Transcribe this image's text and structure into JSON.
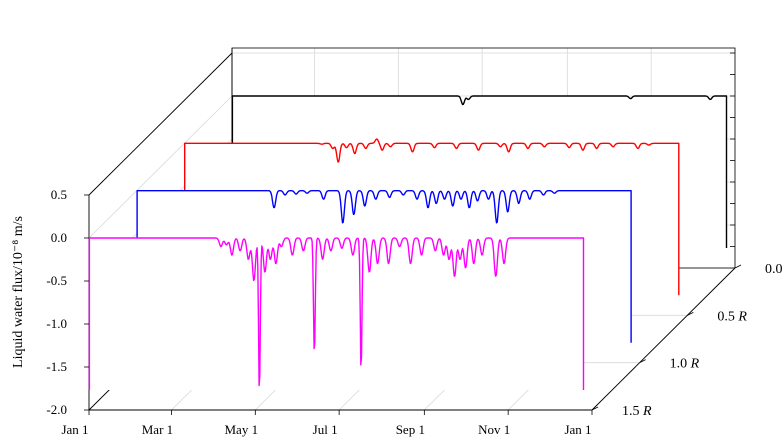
{
  "chart_data": {
    "type": "line",
    "style": "3d-waterfall",
    "ylabel": "Liquid water flux/10⁻⁸ m/s",
    "ylim": [
      -2.0,
      0.5
    ],
    "y_ticks": [
      "0.5",
      "0.0",
      "-0.5",
      "-1.0",
      "-1.5",
      "-2.0"
    ],
    "x_ticks": [
      "Jan 1",
      "Mar 1",
      "May 1",
      "Jul 1",
      "Sep 1",
      "Nov 1",
      "Jan 1"
    ],
    "x_tick_days": [
      0,
      60,
      121,
      182,
      244,
      305,
      366
    ],
    "depth_ticks": [
      "0.0",
      "0.5",
      "1.0",
      "1.5"
    ],
    "depth_unit": "R",
    "grid": true,
    "series": [
      {
        "depth": "0.0",
        "color": "#000000",
        "baseline": 0.0,
        "spikes": [
          [
            168,
            -0.1
          ],
          [
            172,
            -0.04
          ],
          [
            290,
            -0.03
          ],
          [
            348,
            -0.04
          ]
        ]
      },
      {
        "depth": "0.5",
        "color": "#ff0000",
        "baseline": 0.0,
        "spikes": [
          [
            100,
            -0.01
          ],
          [
            108,
            -0.06
          ],
          [
            112,
            -0.22
          ],
          [
            118,
            -0.05
          ],
          [
            124,
            -0.12
          ],
          [
            132,
            -0.06
          ],
          [
            140,
            0.05
          ],
          [
            144,
            -0.08
          ],
          [
            150,
            -0.04
          ],
          [
            166,
            -0.1
          ],
          [
            182,
            -0.05
          ],
          [
            198,
            -0.06
          ],
          [
            214,
            -0.08
          ],
          [
            230,
            -0.04
          ],
          [
            236,
            -0.1
          ],
          [
            250,
            -0.06
          ],
          [
            262,
            -0.04
          ],
          [
            280,
            -0.05
          ],
          [
            290,
            -0.08
          ],
          [
            300,
            -0.06
          ],
          [
            312,
            -0.04
          ],
          [
            330,
            -0.06
          ],
          [
            338,
            -0.02
          ]
        ]
      },
      {
        "depth": "1.0",
        "color": "#0000ff",
        "baseline": 0.0,
        "spikes": [
          [
            100,
            -0.2
          ],
          [
            108,
            -0.05
          ],
          [
            116,
            -0.04
          ],
          [
            124,
            -0.03
          ],
          [
            136,
            -0.1
          ],
          [
            150,
            -0.38
          ],
          [
            158,
            -0.28
          ],
          [
            166,
            -0.18
          ],
          [
            174,
            -0.1
          ],
          [
            184,
            -0.08
          ],
          [
            194,
            -0.05
          ],
          [
            204,
            -0.1
          ],
          [
            212,
            -0.2
          ],
          [
            218,
            -0.15
          ],
          [
            224,
            -0.1
          ],
          [
            230,
            -0.18
          ],
          [
            236,
            -0.1
          ],
          [
            242,
            -0.2
          ],
          [
            248,
            -0.12
          ],
          [
            256,
            -0.1
          ],
          [
            262,
            -0.38
          ],
          [
            270,
            -0.25
          ],
          [
            278,
            -0.15
          ],
          [
            286,
            -0.1
          ],
          [
            296,
            -0.05
          ],
          [
            304,
            -0.03
          ]
        ]
      },
      {
        "depth": "1.5",
        "color": "#ff00ff",
        "baseline": 0.0,
        "spikes": [
          [
            96,
            -0.1
          ],
          [
            100,
            -0.08
          ],
          [
            104,
            -0.2
          ],
          [
            110,
            -0.15
          ],
          [
            116,
            -0.25
          ],
          [
            120,
            -0.5
          ],
          [
            124,
            -1.8
          ],
          [
            128,
            -0.4
          ],
          [
            132,
            -0.25
          ],
          [
            136,
            -0.3
          ],
          [
            140,
            -0.1
          ],
          [
            148,
            -0.2
          ],
          [
            156,
            -0.15
          ],
          [
            164,
            -1.35
          ],
          [
            170,
            -0.25
          ],
          [
            176,
            -0.15
          ],
          [
            184,
            -0.12
          ],
          [
            192,
            -0.2
          ],
          [
            198,
            -1.55
          ],
          [
            204,
            -0.4
          ],
          [
            210,
            -0.3
          ],
          [
            218,
            -0.3
          ],
          [
            226,
            -0.1
          ],
          [
            234,
            -0.3
          ],
          [
            242,
            -0.2
          ],
          [
            252,
            -0.15
          ],
          [
            258,
            -0.2
          ],
          [
            262,
            -0.25
          ],
          [
            266,
            -0.45
          ],
          [
            270,
            -0.25
          ],
          [
            274,
            -0.35
          ],
          [
            280,
            -0.3
          ],
          [
            286,
            -0.2
          ],
          [
            296,
            -0.45
          ],
          [
            302,
            -0.3
          ]
        ]
      }
    ]
  }
}
